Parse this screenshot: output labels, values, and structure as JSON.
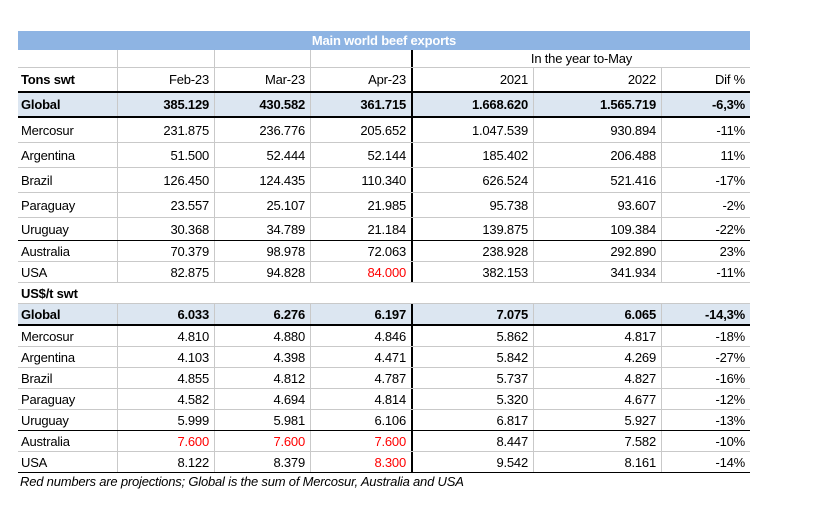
{
  "title": "Main world beef exports",
  "subheader": "In the year to-May",
  "columns": [
    "Feb-23",
    "Mar-23",
    "Apr-23",
    "2021",
    "2022",
    "Dif %"
  ],
  "tons": {
    "section_label": "Tons swt",
    "global": {
      "label": "Global",
      "values": [
        "385.129",
        "430.582",
        "361.715",
        "1.668.620",
        "1.565.719",
        "-6,3%"
      ]
    },
    "rows": [
      {
        "label": "Mercosur",
        "values": [
          "231.875",
          "236.776",
          "205.652",
          "1.047.539",
          "930.894",
          "-11%"
        ]
      },
      {
        "label": "Argentina",
        "values": [
          "51.500",
          "52.444",
          "52.144",
          "185.402",
          "206.488",
          "11%"
        ]
      },
      {
        "label": "Brazil",
        "values": [
          "126.450",
          "124.435",
          "110.340",
          "626.524",
          "521.416",
          "-17%"
        ]
      },
      {
        "label": "Paraguay",
        "values": [
          "23.557",
          "25.107",
          "21.985",
          "95.738",
          "93.607",
          "-2%"
        ]
      },
      {
        "label": "Uruguay",
        "values": [
          "30.368",
          "34.789",
          "21.184",
          "139.875",
          "109.384",
          "-22%"
        ]
      },
      {
        "label": "Australia",
        "values": [
          "70.379",
          "98.978",
          "72.063",
          "238.928",
          "292.890",
          "23%"
        ]
      },
      {
        "label": "USA",
        "values": [
          "82.875",
          "94.828",
          "84.000",
          "382.153",
          "341.934",
          "-11%"
        ]
      }
    ]
  },
  "prices": {
    "section_label": "US$/t swt",
    "global": {
      "label": "Global",
      "values": [
        "6.033",
        "6.276",
        "6.197",
        "7.075",
        "6.065",
        "-14,3%"
      ]
    },
    "rows": [
      {
        "label": "Mercosur",
        "values": [
          "4.810",
          "4.880",
          "4.846",
          "5.862",
          "4.817",
          "-18%"
        ]
      },
      {
        "label": "Argentina",
        "values": [
          "4.103",
          "4.398",
          "4.471",
          "5.842",
          "4.269",
          "-27%"
        ]
      },
      {
        "label": "Brazil",
        "values": [
          "4.855",
          "4.812",
          "4.787",
          "5.737",
          "4.827",
          "-16%"
        ]
      },
      {
        "label": "Paraguay",
        "values": [
          "4.582",
          "4.694",
          "4.814",
          "5.320",
          "4.677",
          "-12%"
        ]
      },
      {
        "label": "Uruguay",
        "values": [
          "5.999",
          "5.981",
          "6.106",
          "6.817",
          "5.927",
          "-13%"
        ]
      },
      {
        "label": "Australia",
        "values": [
          "7.600",
          "7.600",
          "7.600",
          "8.447",
          "7.582",
          "-10%"
        ]
      },
      {
        "label": "USA",
        "values": [
          "8.122",
          "8.379",
          "8.300",
          "9.542",
          "8.161",
          "-14%"
        ]
      }
    ]
  },
  "footnote": "Red numbers are projections; Global is the sum of Mercosur, Australia and USA",
  "colors": {
    "title_bar": "#8EB4E3",
    "global_row": "#DCE6F1",
    "projection_text": "#FF0000",
    "gridline": "#C9C9C9"
  }
}
